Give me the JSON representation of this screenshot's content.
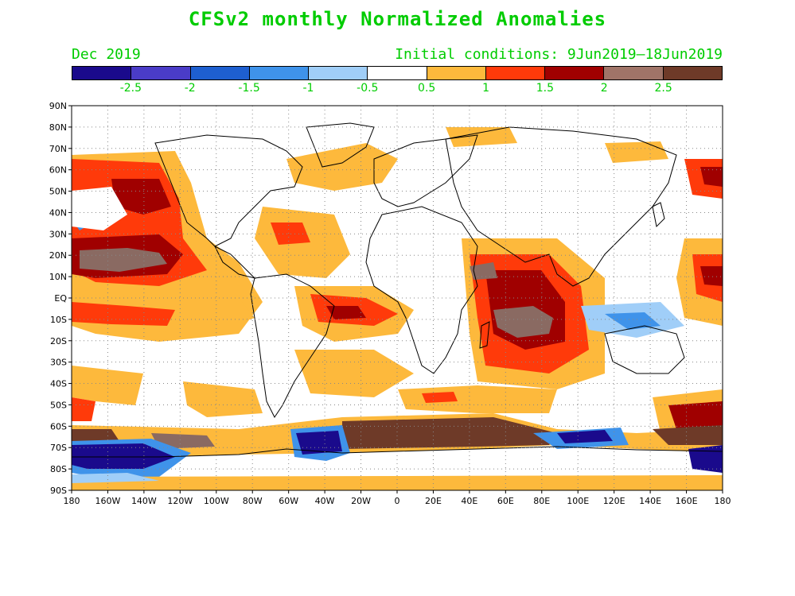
{
  "title": "CFSv2 monthly Normalized Anomalies",
  "month_label": "Dec 2019",
  "initial_conditions": "Initial conditions: 9Jun2019–18Jun2019",
  "colorbar": {
    "colors": [
      "#1a0a8c",
      "#4a3cc8",
      "#1e5fd0",
      "#3f93ea",
      "#a0cef8",
      "#ffffff",
      "#fdb93c",
      "#ff3a0a",
      "#a00000",
      "#a07468",
      "#6e3a28"
    ],
    "labels": [
      "-2.5",
      "-2",
      "-1.5",
      "-1",
      "-0.5",
      "0.5",
      "1",
      "1.5",
      "2",
      "2.5"
    ]
  },
  "axes": {
    "lat_labels": [
      "90N",
      "80N",
      "70N",
      "60N",
      "50N",
      "40N",
      "30N",
      "20N",
      "10N",
      "EQ",
      "10S",
      "20S",
      "30S",
      "40S",
      "50S",
      "60S",
      "70S",
      "80S",
      "90S"
    ],
    "lon_labels": [
      "180",
      "160W",
      "140W",
      "120W",
      "100W",
      "80W",
      "60W",
      "40W",
      "20W",
      "0",
      "20E",
      "40E",
      "60E",
      "80E",
      "100E",
      "120E",
      "140E",
      "160E",
      "180"
    ]
  }
}
